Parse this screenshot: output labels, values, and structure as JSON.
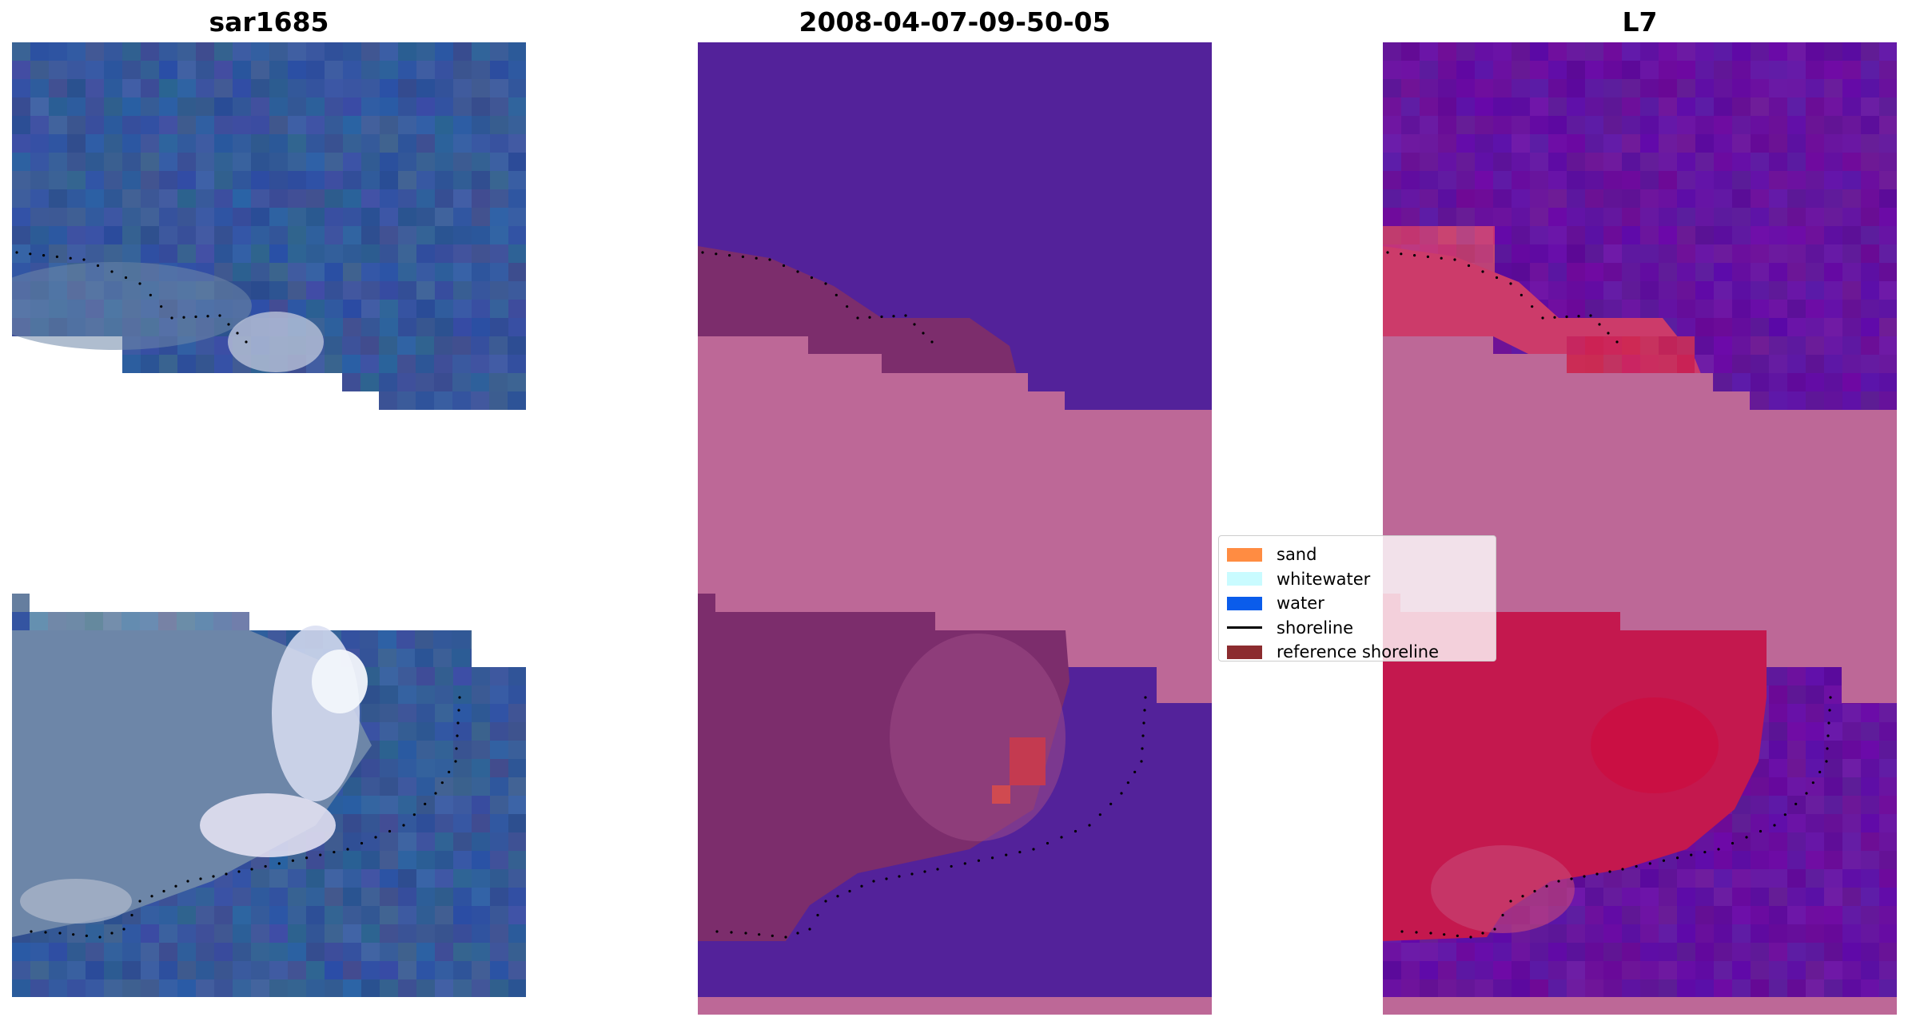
{
  "panels": [
    {
      "title": "sar1685"
    },
    {
      "title": "2008-04-07-09-50-05"
    },
    {
      "title": "L7"
    }
  ],
  "legend": {
    "items": [
      {
        "label": "sand",
        "color": "#ff8c42",
        "kind": "patch"
      },
      {
        "label": "whitewater",
        "color": "#c9fbff",
        "kind": "patch"
      },
      {
        "label": "water",
        "color": "#0a5ceb",
        "kind": "patch"
      },
      {
        "label": "shoreline",
        "color": "#000000",
        "kind": "line"
      },
      {
        "label": "reference shoreline",
        "color": "#8c2c2f",
        "kind": "patch"
      }
    ]
  },
  "colors": {
    "rgb_water": "#36589a",
    "rgb_shallow": "#6d86a8",
    "rgb_whitewater": "#f2f5fb",
    "class_water": "#53229a",
    "class_sand": "#bd6897",
    "class_reference": "#7c2d6c",
    "ndwi_water": "#65139f",
    "ndwi_sand": "#c4184e",
    "ndwi_pink": "#bd6897"
  }
}
